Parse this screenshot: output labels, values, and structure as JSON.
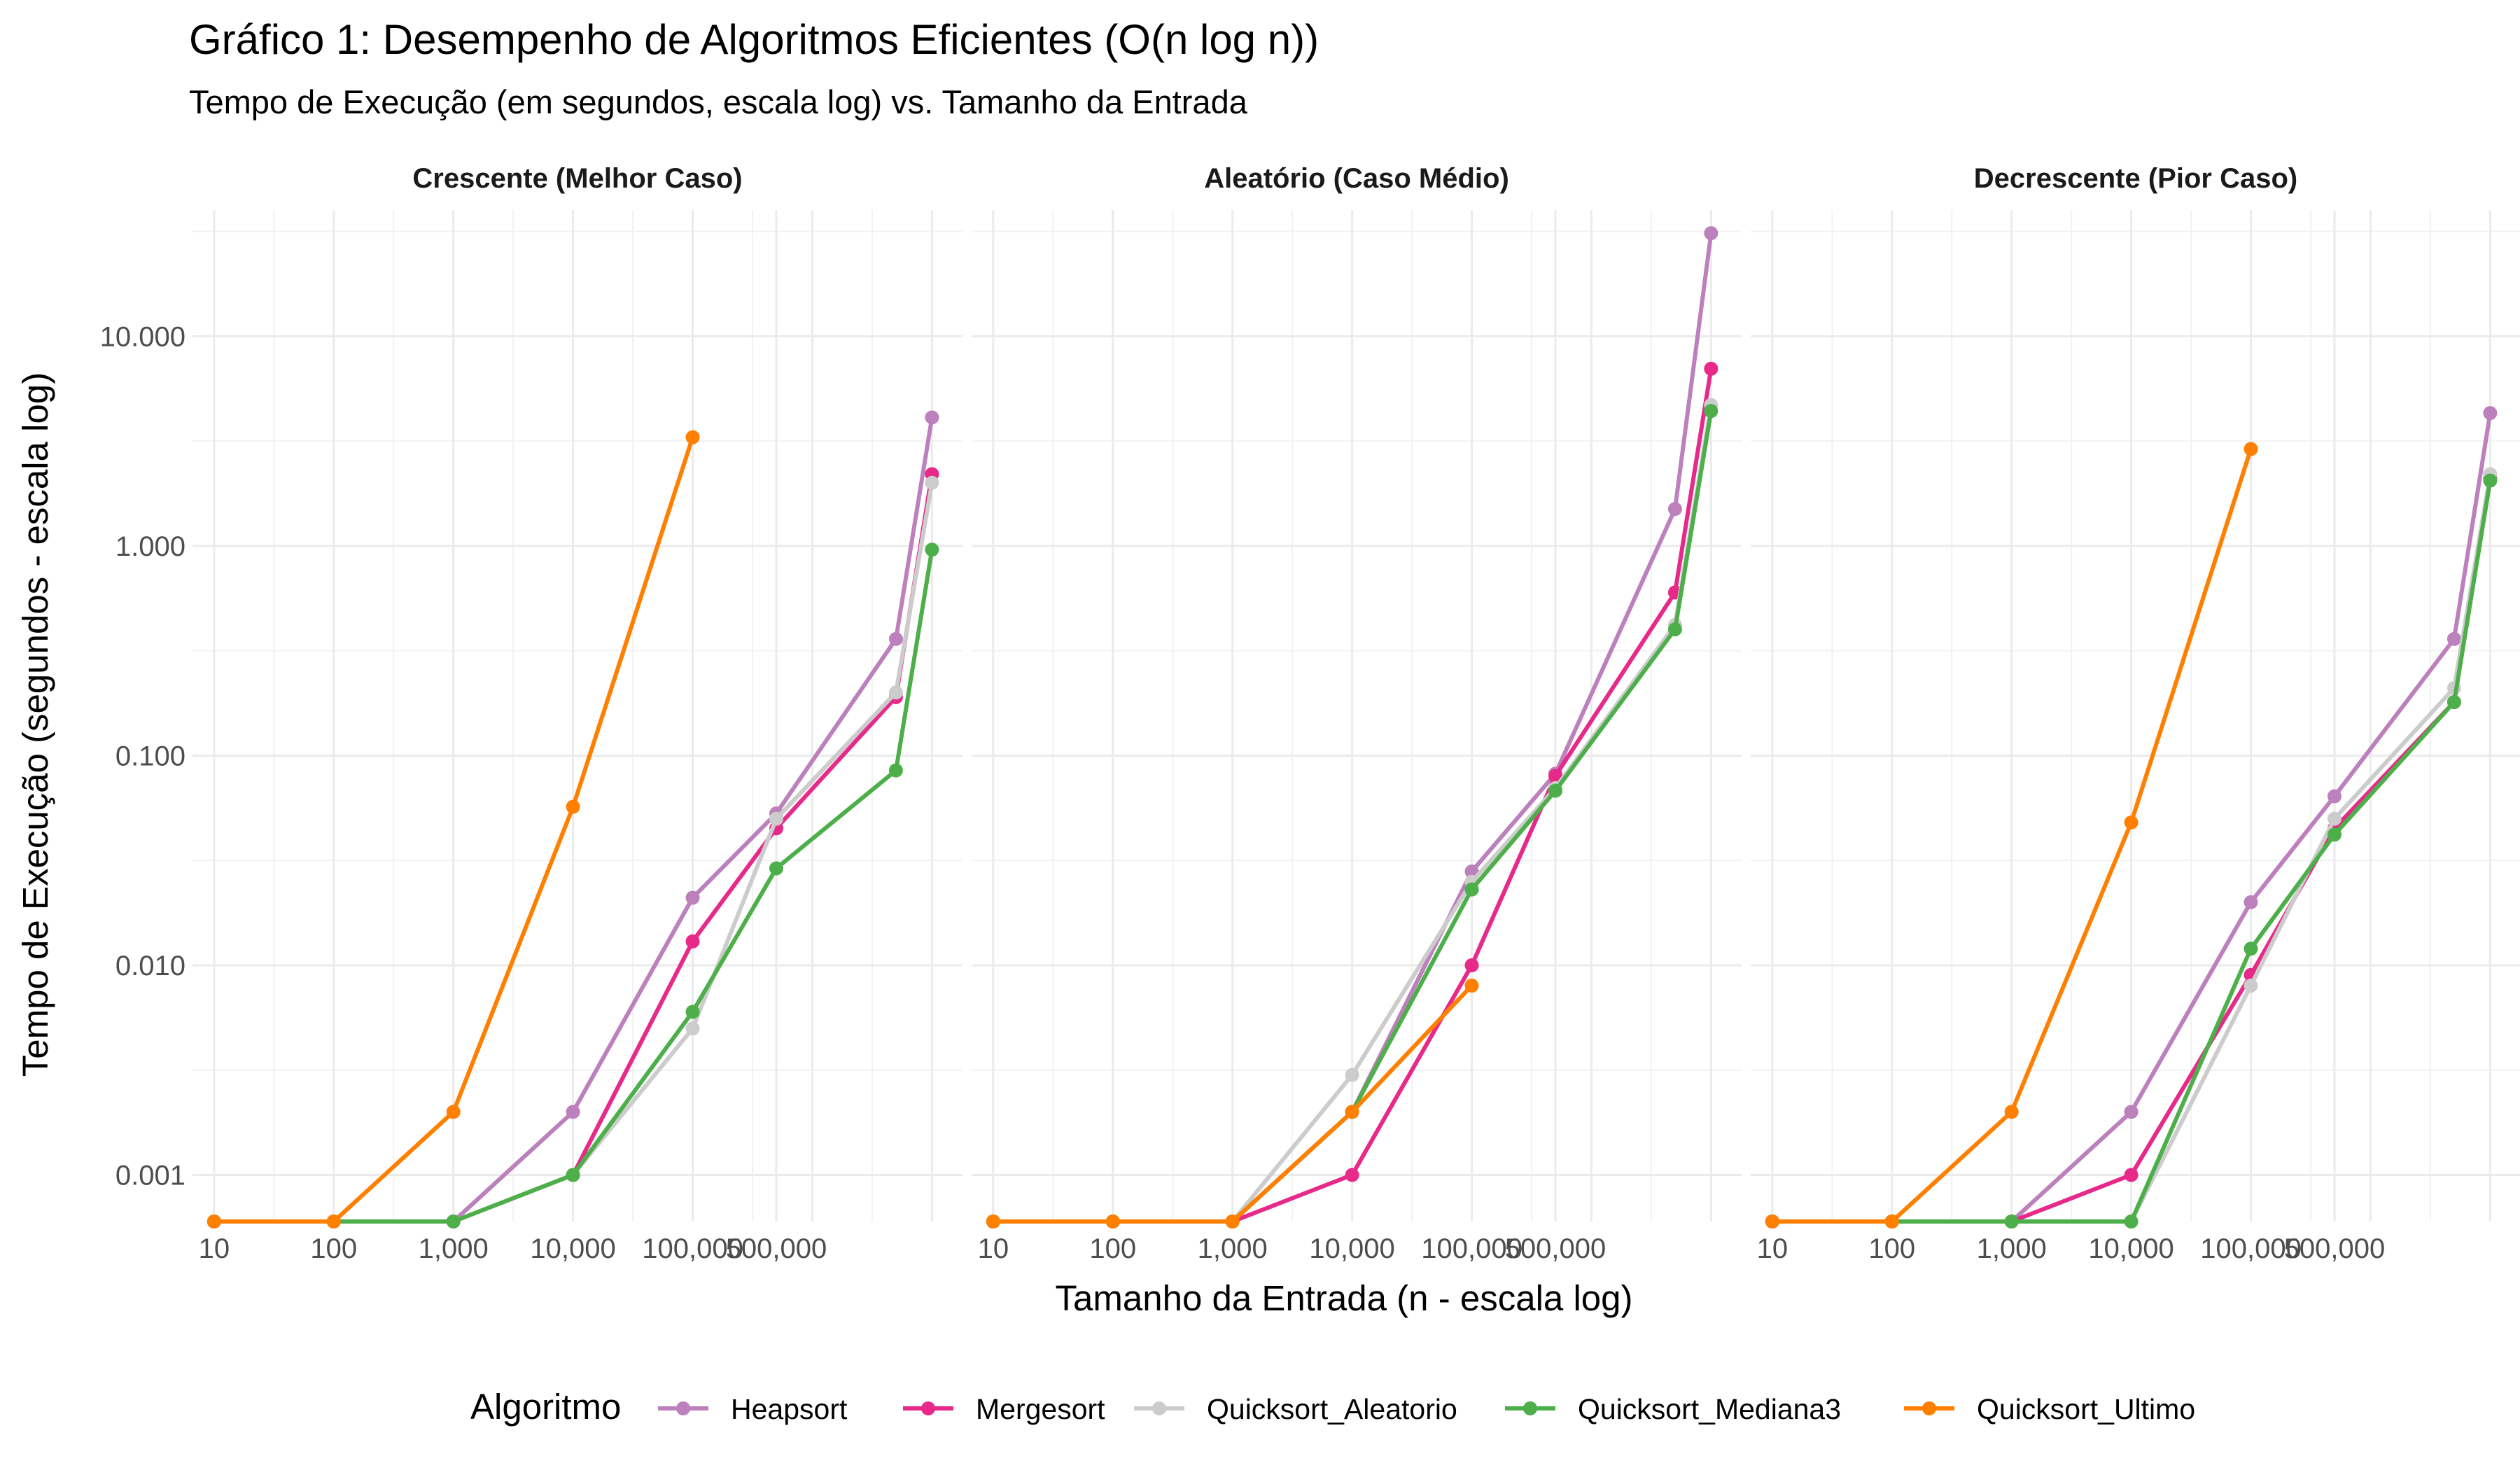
{
  "chart_data": {
    "type": "line",
    "title": "Gráfico 1: Desempenho de Algoritmos Eficientes (O(n log n))",
    "subtitle": "Tempo de Execução (em segundos, escala log) vs. Tamanho da Entrada",
    "xlabel": "Tamanho da Entrada (n - escala log)",
    "ylabel": "Tempo de Execução (segundos - escala log)",
    "x_scale": "log",
    "y_scale": "log",
    "x_ticks": [
      10,
      100,
      1000,
      10000,
      100000,
      500000
    ],
    "x_tick_labels": [
      "10",
      "100",
      "1,000",
      "10,000",
      "100,000",
      "500,000"
    ],
    "y_ticks": [
      0.001,
      0.01,
      0.1,
      1,
      10
    ],
    "y_tick_labels": [
      "0.001",
      "0.010",
      "0.100",
      "1.000",
      "10.000"
    ],
    "xlim": [
      6.6,
      18000000
    ],
    "ylim": [
      0.0006,
      40
    ],
    "grid": true,
    "legend_title": "Algoritmo",
    "legend_position": "bottom",
    "series_styles": [
      {
        "name": "Heapsort",
        "color": "#bc80bd"
      },
      {
        "name": "Mergesort",
        "color": "#e7298a"
      },
      {
        "name": "Quicksort_Aleatorio",
        "color": "#cccccc"
      },
      {
        "name": "Quicksort_Mediana3",
        "color": "#4daf4a"
      },
      {
        "name": "Quicksort_Ultimo",
        "color": "#ff7f00"
      }
    ],
    "x": [
      10,
      100,
      1000,
      10000,
      100000,
      500000,
      5000000,
      10000000
    ],
    "panels": [
      {
        "title": "Crescente (Melhor Caso)",
        "series": [
          {
            "name": "Heapsort",
            "values": [
              0.0006,
              0.0006,
              0.0006,
              0.002,
              0.021,
              0.053,
              0.36,
              4.1
            ]
          },
          {
            "name": "Mergesort",
            "values": [
              0.0006,
              0.0006,
              0.0006,
              0.001,
              0.013,
              0.045,
              0.19,
              2.2
            ]
          },
          {
            "name": "Quicksort_Aleatorio",
            "values": [
              0.0006,
              0.0006,
              0.0006,
              0.001,
              0.005,
              0.05,
              0.2,
              2.0
            ]
          },
          {
            "name": "Quicksort_Mediana3",
            "values": [
              0.0006,
              0.0006,
              0.0006,
              0.001,
              0.006,
              0.029,
              0.085,
              0.96
            ]
          },
          {
            "name": "Quicksort_Ultimo",
            "values": [
              0.0006,
              0.0006,
              0.002,
              0.057,
              3.3,
              null,
              null,
              null
            ]
          }
        ]
      },
      {
        "title": "Aleatório (Caso Médio)",
        "series": [
          {
            "name": "Heapsort",
            "values": [
              0.0006,
              0.0006,
              0.0006,
              0.002,
              0.028,
              0.082,
              1.5,
              31
            ]
          },
          {
            "name": "Mergesort",
            "values": [
              0.0006,
              0.0006,
              0.0006,
              0.001,
              0.01,
              0.08,
              0.6,
              7
            ]
          },
          {
            "name": "Quicksort_Aleatorio",
            "values": [
              0.0006,
              0.0006,
              0.0006,
              0.003,
              0.025,
              0.07,
              0.42,
              4.7
            ]
          },
          {
            "name": "Quicksort_Mediana3",
            "values": [
              0.0006,
              0.0006,
              0.0006,
              0.002,
              0.023,
              0.068,
              0.4,
              4.4
            ]
          },
          {
            "name": "Quicksort_Ultimo",
            "values": [
              0.0006,
              0.0006,
              0.0006,
              0.002,
              0.008,
              null,
              null,
              null
            ]
          }
        ]
      },
      {
        "title": "Decrescente (Pior Caso)",
        "series": [
          {
            "name": "Heapsort",
            "values": [
              0.0006,
              0.0006,
              0.0006,
              0.002,
              0.02,
              0.064,
              0.36,
              4.3
            ]
          },
          {
            "name": "Mergesort",
            "values": [
              0.0006,
              0.0006,
              0.0006,
              0.001,
              0.009,
              0.045,
              0.18,
              2.1
            ]
          },
          {
            "name": "Quicksort_Aleatorio",
            "values": [
              0.0006,
              0.0006,
              0.0006,
              0.0006,
              0.008,
              0.05,
              0.21,
              2.2
            ]
          },
          {
            "name": "Quicksort_Mediana3",
            "values": [
              0.0006,
              0.0006,
              0.0006,
              0.0006,
              0.012,
              0.042,
              0.18,
              2.05
            ]
          },
          {
            "name": "Quicksort_Ultimo",
            "values": [
              0.0006,
              0.0006,
              0.002,
              0.048,
              2.9,
              null,
              null,
              null
            ]
          }
        ]
      }
    ]
  }
}
